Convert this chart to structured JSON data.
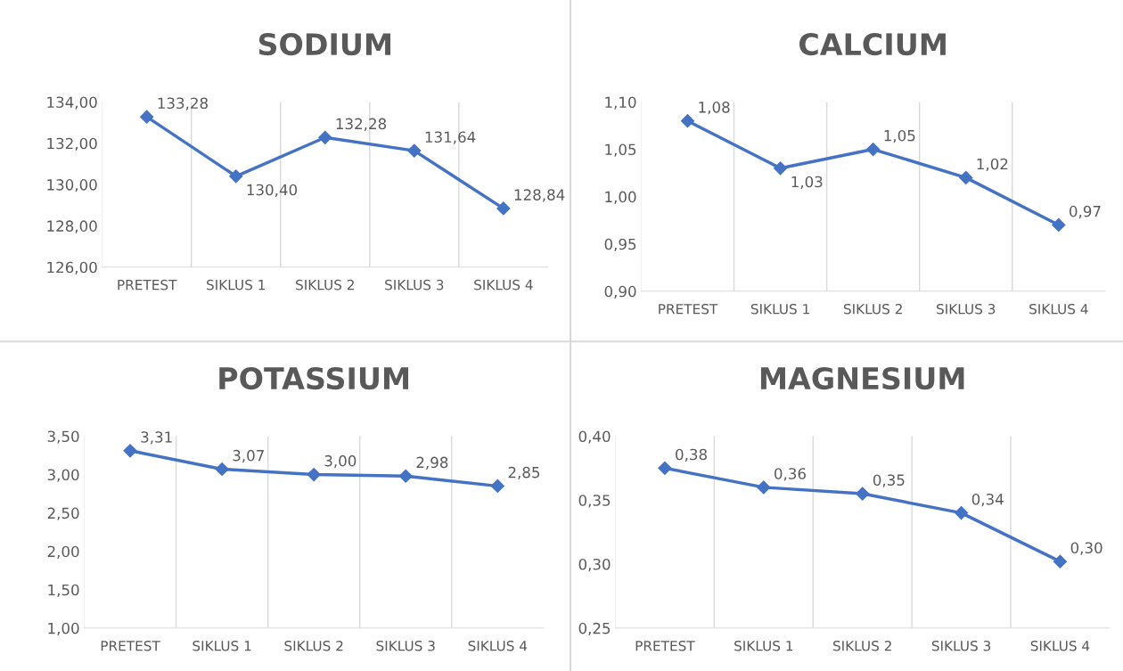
{
  "chart_data": [
    {
      "type": "line",
      "title": "SODIUM",
      "categories": [
        "PRETEST",
        "SIKLUS 1",
        "SIKLUS 2",
        "SIKLUS 3",
        "SIKLUS 4"
      ],
      "series": [
        {
          "color": "#4472c4",
          "values": [
            133.28,
            130.4,
            132.28,
            131.64,
            128.84
          ],
          "value_labels": [
            "133,28",
            "130,40",
            "132,28",
            "131,64",
            "128,84"
          ]
        }
      ],
      "ylim": [
        126,
        134
      ],
      "yticks": [
        {
          "value": 126,
          "label": "126,00"
        },
        {
          "value": 128,
          "label": "128,00"
        },
        {
          "value": 130,
          "label": "130,00"
        },
        {
          "value": 132,
          "label": "132,00"
        },
        {
          "value": 134,
          "label": "134,00"
        }
      ],
      "grid": "x",
      "marker": "diamond",
      "line_style": "solid",
      "legend": false
    },
    {
      "type": "line",
      "title": "CALCIUM",
      "categories": [
        "PRETEST",
        "SIKLUS 1",
        "SIKLUS 2",
        "SIKLUS 3",
        "SIKLUS 4"
      ],
      "series": [
        {
          "color": "#4472c4",
          "values": [
            1.08,
            1.03,
            1.05,
            1.02,
            0.97
          ],
          "value_labels": [
            "1,08",
            "1,03",
            "1,05",
            "1,02",
            "0,97"
          ]
        }
      ],
      "ylim": [
        0.9,
        1.1
      ],
      "yticks": [
        {
          "value": 0.9,
          "label": "0,90"
        },
        {
          "value": 0.95,
          "label": "0,95"
        },
        {
          "value": 1.0,
          "label": "1,00"
        },
        {
          "value": 1.05,
          "label": "1,05"
        },
        {
          "value": 1.1,
          "label": "1,10"
        }
      ],
      "grid": "x",
      "marker": "diamond",
      "line_style": "solid",
      "legend": false
    },
    {
      "type": "line",
      "title": "POTASSIUM",
      "categories": [
        "PRETEST",
        "SIKLUS 1",
        "SIKLUS 2",
        "SIKLUS 3",
        "SIKLUS 4"
      ],
      "series": [
        {
          "color": "#4472c4",
          "values": [
            3.31,
            3.07,
            3.0,
            2.98,
            2.85
          ],
          "value_labels": [
            "3,31",
            "3,07",
            "3,00",
            "2,98",
            "2,85"
          ]
        }
      ],
      "ylim": [
        1.0,
        3.5
      ],
      "yticks": [
        {
          "value": 1.0,
          "label": "1,00"
        },
        {
          "value": 1.5,
          "label": "1,50"
        },
        {
          "value": 2.0,
          "label": "2,00"
        },
        {
          "value": 2.5,
          "label": "2,50"
        },
        {
          "value": 3.0,
          "label": "3,00"
        },
        {
          "value": 3.5,
          "label": "3,50"
        }
      ],
      "grid": "x",
      "marker": "diamond",
      "line_style": "solid",
      "legend": false
    },
    {
      "type": "line",
      "title": "MAGNESIUM",
      "categories": [
        "PRETEST",
        "SIKLUS 1",
        "SIKLUS 2",
        "SIKLUS 3",
        "SIKLUS 4"
      ],
      "series": [
        {
          "color": "#4472c4",
          "values": [
            0.375,
            0.36,
            0.355,
            0.34,
            0.302
          ],
          "value_labels": [
            "0,38",
            "0,36",
            "0,35",
            "0,34",
            "0,30"
          ]
        }
      ],
      "ylim": [
        0.25,
        0.4
      ],
      "yticks": [
        {
          "value": 0.25,
          "label": "0,25"
        },
        {
          "value": 0.3,
          "label": "0,30"
        },
        {
          "value": 0.35,
          "label": "0,35"
        },
        {
          "value": 0.4,
          "label": "0,40"
        }
      ],
      "grid": "x",
      "marker": "diamond",
      "line_style": "solid",
      "legend": false
    }
  ]
}
